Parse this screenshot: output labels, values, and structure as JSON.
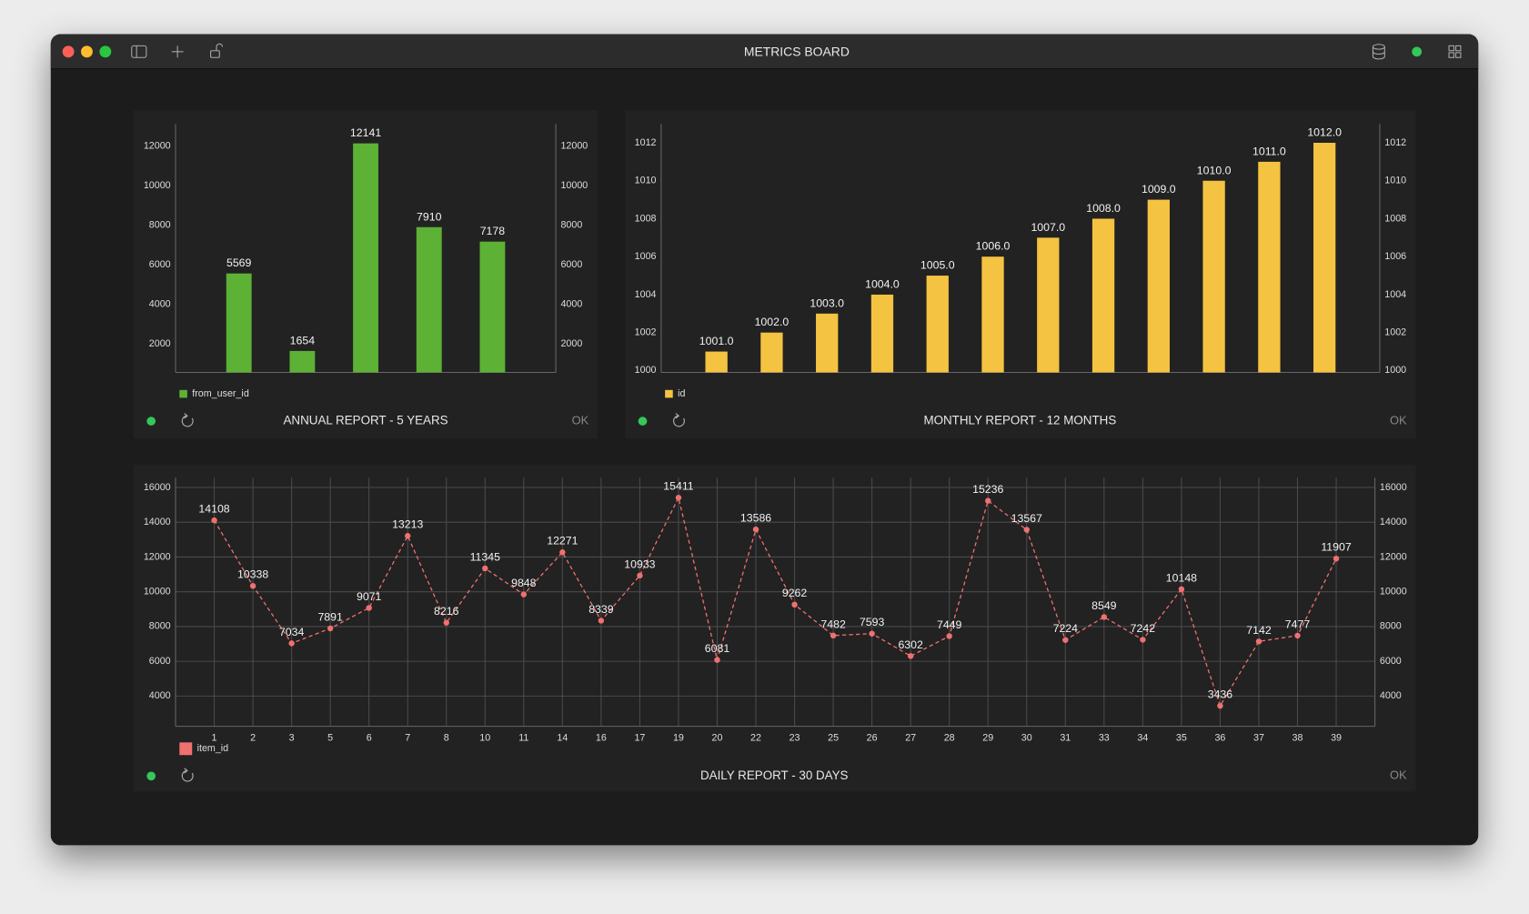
{
  "window": {
    "title": "METRICS BOARD"
  },
  "chart_data": [
    {
      "type": "bar",
      "title": "ANNUAL REPORT - 5 YEARS",
      "status": "OK",
      "categories": [
        null,
        null,
        null,
        null,
        null
      ],
      "series": [
        {
          "name": "from_user_id",
          "color": "#5db135",
          "values": [
            5569,
            1654,
            12141,
            7910,
            7178
          ]
        }
      ],
      "ylim": [
        570,
        13130
      ],
      "yticks": [
        2000,
        4000,
        6000,
        8000,
        10000,
        12000
      ],
      "y2lim": [
        570,
        13130
      ],
      "y2ticks": [
        2000,
        4000,
        6000,
        8000,
        10000,
        12000
      ],
      "grid": false
    },
    {
      "type": "bar",
      "title": "MONTHLY REPORT - 12 MONTHS",
      "status": "OK",
      "categories": [
        null,
        null,
        null,
        null,
        null,
        null,
        null,
        null,
        null,
        null,
        null,
        null
      ],
      "series": [
        {
          "name": "id",
          "color": "#f5c342",
          "values": [
            1001,
            1002,
            1003,
            1004,
            1005,
            1006,
            1007,
            1008,
            1009,
            1010,
            1011,
            1012
          ],
          "value_labels": [
            "1001.0",
            "1002.0",
            "1003.0",
            "1004.0",
            "1005.0",
            "1006.0",
            "1007.0",
            "1008.0",
            "1009.0",
            "1010.0",
            "1011.0",
            "1012.0"
          ]
        }
      ],
      "ylim": [
        999.9,
        1013.0
      ],
      "yticks": [
        1000,
        1002,
        1004,
        1006,
        1008,
        1010,
        1012
      ],
      "y2lim": [
        999.9,
        1013.0
      ],
      "y2ticks": [
        1000,
        1002,
        1004,
        1006,
        1008,
        1010,
        1012
      ],
      "grid": false
    },
    {
      "type": "line",
      "title": "DAILY REPORT - 30 DAYS",
      "status": "OK",
      "categories": [
        "1",
        "2",
        "3",
        "5",
        "6",
        "7",
        "8",
        "10",
        "11",
        "14",
        "16",
        "17",
        "19",
        "20",
        "22",
        "23",
        "25",
        "26",
        "27",
        "28",
        "29",
        "30",
        "31",
        "33",
        "34",
        "35",
        "36",
        "37",
        "38",
        "39"
      ],
      "series": [
        {
          "name": "item_id",
          "color": "#f07070",
          "values": [
            14108,
            10338,
            7034,
            7891,
            9071,
            13213,
            8216,
            11345,
            9848,
            12271,
            8339,
            10933,
            15411,
            6081,
            13586,
            9262,
            7482,
            7593,
            6302,
            7449,
            15236,
            13567,
            7224,
            8549,
            7242,
            10148,
            3436,
            7142,
            7477,
            11907
          ]
        }
      ],
      "ylim": [
        2260,
        16560
      ],
      "yticks": [
        4000,
        6000,
        8000,
        10000,
        12000,
        14000,
        16000
      ],
      "y2lim": [
        2260,
        16560
      ],
      "y2ticks": [
        4000,
        6000,
        8000,
        10000,
        12000,
        14000,
        16000
      ],
      "grid": true
    }
  ]
}
